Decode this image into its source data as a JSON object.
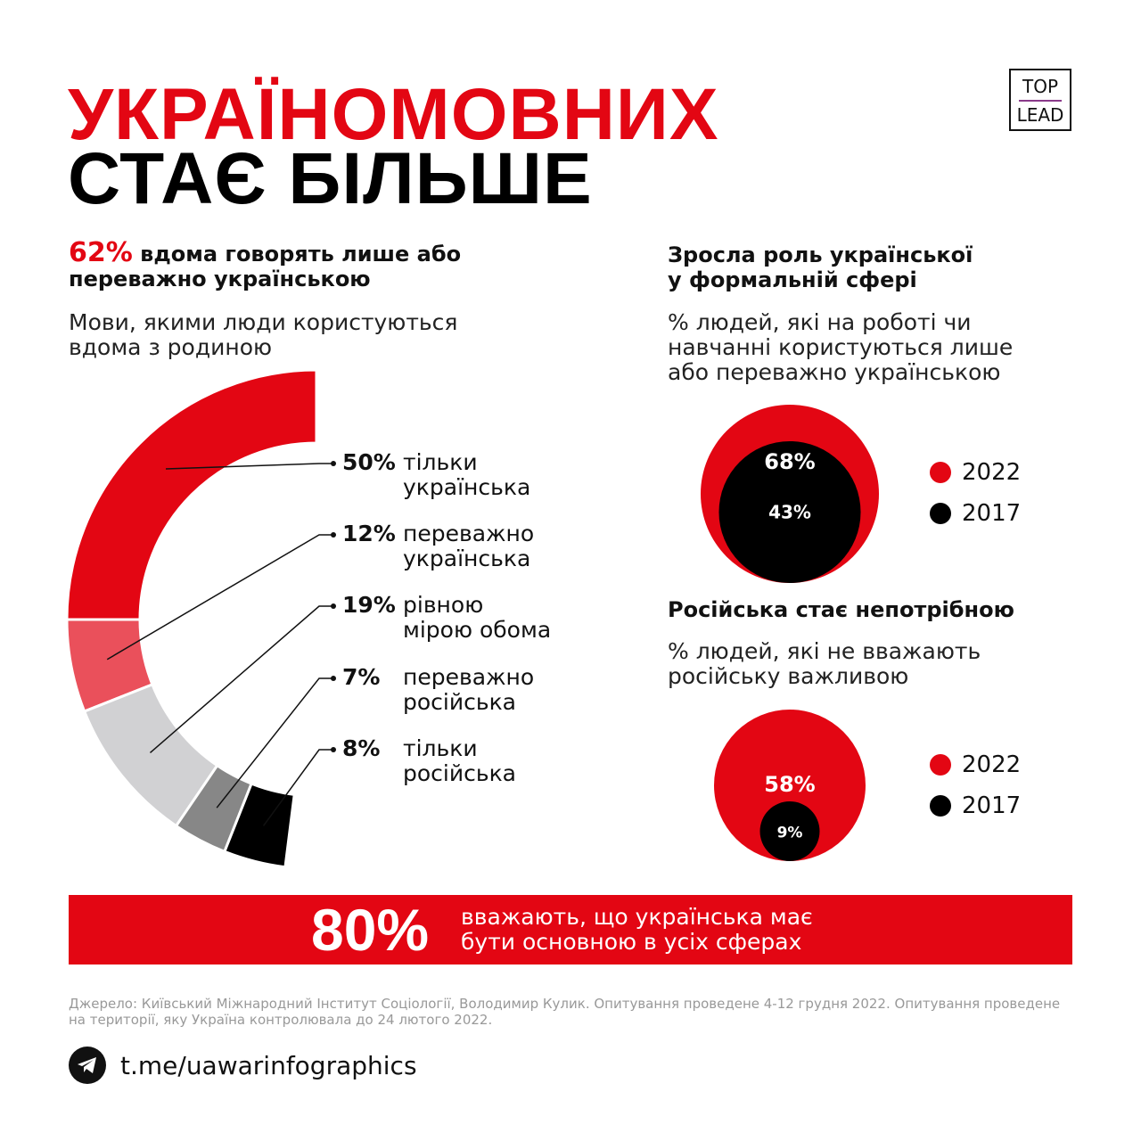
{
  "title": {
    "line1": "УКРАЇНОМОВНИХ",
    "line2": "СТАЄ БІЛЬШЕ"
  },
  "logo": {
    "top": "TOP",
    "bottom": "LEAD"
  },
  "left": {
    "headline_pct": "62%",
    "headline_rest": "вдома говорять лише або",
    "headline_line2": "переважно українською",
    "subtitle1": "Мови, якими люди користуються",
    "subtitle2": "вдома з родиною"
  },
  "right_top": {
    "heading1": "Зросла роль української",
    "heading2": "у формальній сфері",
    "sub1": "% людей, які на роботі чи",
    "sub2": "навчанні користуються лише",
    "sub3": "або переважно українською"
  },
  "right_bottom": {
    "heading": "Російська стає непотрібною",
    "sub1": "% людей, які не вважають",
    "sub2": "російську важливою"
  },
  "chart_data": [
    {
      "type": "pie",
      "variant": "half-donut",
      "title": "Мови, якими люди користуються вдома з родиною",
      "categories": [
        {
          "pct": "50%",
          "l1": "тільки",
          "l2": "українська",
          "value": 50,
          "color": "#e30613"
        },
        {
          "pct": "12%",
          "l1": "переважно",
          "l2": "українська",
          "value": 12,
          "color": "#ea505b"
        },
        {
          "pct": "19%",
          "l1": "рівною",
          "l2": "мірою обома",
          "value": 19,
          "color": "#d1d1d3"
        },
        {
          "pct": "7%",
          "l1": "переважно",
          "l2": "російська",
          "value": 7,
          "color": "#878787"
        },
        {
          "pct": "8%",
          "l1": "тільки",
          "l2": "російська",
          "value": 8,
          "color": "#000000"
        }
      ]
    },
    {
      "type": "bubble",
      "title": "Зросла роль української у формальній сфері",
      "series": [
        {
          "name": "2022",
          "value": 68,
          "label": "68%",
          "color": "#e30613"
        },
        {
          "name": "2017",
          "value": 43,
          "label": "43%",
          "color": "#000000"
        }
      ]
    },
    {
      "type": "bubble",
      "title": "Російська стає непотрібною",
      "series": [
        {
          "name": "2022",
          "value": 58,
          "label": "58%",
          "color": "#e30613"
        },
        {
          "name": "2017",
          "value": 9,
          "label": "9%",
          "color": "#000000"
        }
      ]
    }
  ],
  "banner": {
    "pct": "80%",
    "line1": "вважають, що українська має",
    "line2": "бути основною в усіх сферах"
  },
  "source": "Джерело: Київський Міжнародний Інститут Соціології, Володимир Кулик. Опитування проведене 4-12 грудня 2022. Опитування проведене на території, яку Україна контролювала до 24 лютого 2022.",
  "telegram": "t.me/uawarinfographics"
}
